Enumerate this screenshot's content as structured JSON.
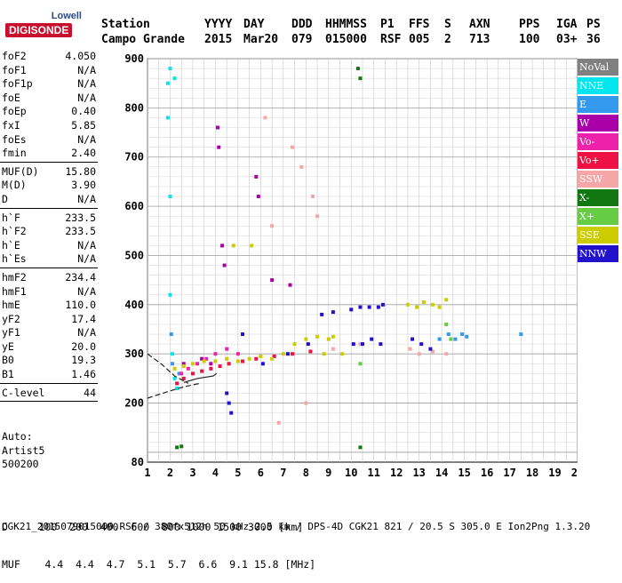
{
  "logo": {
    "top": "Lowell",
    "bottom": "DIGISONDE"
  },
  "header": {
    "labels": [
      "Station",
      "YYYY",
      "DAY",
      "DDD",
      "HHMMSS",
      "P1",
      "FFS",
      "S",
      "AXN",
      "PPS",
      "IGA",
      "PS"
    ],
    "values": [
      "Campo Grande",
      "2015",
      "Mar20",
      "079",
      "015000",
      "RSF",
      "005",
      "2",
      "713",
      "100",
      "03+",
      "36"
    ]
  },
  "params": [
    {
      "group": [
        {
          "name": "foF2",
          "value": "4.050"
        },
        {
          "name": "foF1",
          "value": "N/A"
        },
        {
          "name": "foF1p",
          "value": "N/A"
        },
        {
          "name": "foE",
          "value": "N/A"
        },
        {
          "name": "foEp",
          "value": "0.40"
        },
        {
          "name": "fxI",
          "value": "5.85"
        },
        {
          "name": "foEs",
          "value": "N/A"
        },
        {
          "name": "fmin",
          "value": "2.40"
        }
      ]
    },
    {
      "group": [
        {
          "name": "MUF(D)",
          "value": "15.80"
        },
        {
          "name": "M(D)",
          "value": "3.90"
        },
        {
          "name": "D",
          "value": "N/A"
        }
      ]
    },
    {
      "group": [
        {
          "name": "h`F",
          "value": "233.5"
        },
        {
          "name": "h`F2",
          "value": "233.5"
        },
        {
          "name": "h`E",
          "value": "N/A"
        },
        {
          "name": "h`Es",
          "value": "N/A"
        }
      ]
    },
    {
      "group": [
        {
          "name": "hmF2",
          "value": "234.4"
        },
        {
          "name": "hmF1",
          "value": "N/A"
        },
        {
          "name": "hmE",
          "value": "110.0"
        },
        {
          "name": "yF2",
          "value": "17.4"
        },
        {
          "name": "yF1",
          "value": "N/A"
        },
        {
          "name": "yE",
          "value": "20.0"
        },
        {
          "name": "B0",
          "value": "19.3"
        },
        {
          "name": "B1",
          "value": "1.46"
        }
      ]
    },
    {
      "group": [
        {
          "name": "C-level",
          "value": "44"
        }
      ]
    }
  ],
  "autoscaling": [
    "Auto:",
    "Artist5",
    "500200"
  ],
  "footer": {
    "d_row": "D     100  200  400  600  800 1000 1500 3000 [km]",
    "muf_row": "MUF    4.4  4.4  4.7  5.1  5.7  6.6  9.1 15.8 [MHz]",
    "file_line": "CGK21_2015079015000.RSF / 380fx512h 50 kHz 2.5 km / DPS-4D CGK21 821 / 20.5 S 305.0 E Ion2Png 1.3.20"
  },
  "legend": [
    {
      "label": "NoVal",
      "color": "#808080"
    },
    {
      "label": "NNE",
      "color": "#00e5ee"
    },
    {
      "label": "E",
      "color": "#3399ee"
    },
    {
      "label": "W",
      "color": "#aa00aa"
    },
    {
      "label": "Vo-",
      "color": "#ee22aa"
    },
    {
      "label": "Vo+",
      "color": "#ee1144"
    },
    {
      "label": "SSW",
      "color": "#f5a6a6"
    },
    {
      "label": "X-",
      "color": "#117711"
    },
    {
      "label": "X+",
      "color": "#66cc44"
    },
    {
      "label": "SSE",
      "color": "#cccc00"
    },
    {
      "label": "NNW",
      "color": "#2211cc"
    }
  ],
  "chart_data": {
    "type": "scatter",
    "x_ticks": [
      1,
      2,
      3,
      4,
      5,
      6,
      7,
      8,
      9,
      10,
      11,
      12,
      13,
      14,
      15,
      16,
      17,
      18,
      19,
      20
    ],
    "y_ticks": [
      200,
      300,
      400,
      500,
      600,
      700,
      800,
      900
    ],
    "xlim": [
      1,
      20
    ],
    "ylim": [
      80,
      900
    ],
    "grid": true,
    "legend_position": "right",
    "series": [
      {
        "color_key": "NNE",
        "points": [
          [
            1.9,
            850
          ],
          [
            1.9,
            780
          ],
          [
            2.0,
            620
          ],
          [
            2.0,
            420
          ],
          [
            2.1,
            300
          ],
          [
            2.2,
            250
          ],
          [
            2.3,
            230
          ],
          [
            2.0,
            880
          ],
          [
            2.2,
            860
          ]
        ]
      },
      {
        "color_key": "E",
        "points": [
          [
            2.05,
            340
          ],
          [
            2.1,
            280
          ],
          [
            2.4,
            260
          ],
          [
            13.9,
            330
          ],
          [
            14.3,
            340
          ],
          [
            14.6,
            330
          ],
          [
            14.9,
            340
          ],
          [
            15.1,
            335
          ],
          [
            17.5,
            340
          ]
        ]
      },
      {
        "color_key": "W",
        "points": [
          [
            4.1,
            760
          ],
          [
            4.15,
            720
          ],
          [
            4.3,
            520
          ],
          [
            4.4,
            480
          ],
          [
            5.8,
            660
          ],
          [
            5.9,
            620
          ],
          [
            6.5,
            450
          ],
          [
            7.3,
            440
          ],
          [
            2.6,
            280
          ],
          [
            3.4,
            290
          ],
          [
            3.8,
            280
          ]
        ]
      },
      {
        "color_key": "Vo-",
        "points": [
          [
            2.5,
            260
          ],
          [
            2.8,
            270
          ],
          [
            3.2,
            280
          ],
          [
            3.6,
            290
          ],
          [
            4.0,
            300
          ],
          [
            4.5,
            310
          ],
          [
            5.0,
            300
          ]
        ]
      },
      {
        "color_key": "Vo+",
        "points": [
          [
            2.3,
            240
          ],
          [
            2.6,
            250
          ],
          [
            3.0,
            260
          ],
          [
            3.4,
            265
          ],
          [
            3.8,
            270
          ],
          [
            4.2,
            275
          ],
          [
            4.6,
            280
          ],
          [
            5.2,
            285
          ],
          [
            5.8,
            290
          ],
          [
            6.6,
            295
          ],
          [
            7.4,
            300
          ],
          [
            8.2,
            305
          ]
        ]
      },
      {
        "color_key": "SSW",
        "points": [
          [
            6.2,
            780
          ],
          [
            6.5,
            560
          ],
          [
            7.4,
            720
          ],
          [
            7.8,
            680
          ],
          [
            8.3,
            620
          ],
          [
            8.5,
            580
          ],
          [
            8.0,
            200
          ],
          [
            6.8,
            160
          ],
          [
            9.2,
            310
          ],
          [
            10.4,
            320
          ],
          [
            12.6,
            310
          ],
          [
            13.0,
            300
          ],
          [
            13.6,
            305
          ],
          [
            14.2,
            300
          ]
        ]
      },
      {
        "color_key": "X-",
        "points": [
          [
            2.3,
            110
          ],
          [
            2.5,
            112
          ],
          [
            10.3,
            880
          ],
          [
            10.4,
            860
          ],
          [
            10.4,
            110
          ]
        ]
      },
      {
        "color_key": "X+",
        "points": [
          [
            10.4,
            280
          ],
          [
            14.2,
            360
          ],
          [
            14.4,
            330
          ]
        ]
      },
      {
        "color_key": "SSE",
        "points": [
          [
            2.2,
            270
          ],
          [
            2.6,
            275
          ],
          [
            3.0,
            280
          ],
          [
            3.5,
            285
          ],
          [
            4.0,
            285
          ],
          [
            4.5,
            290
          ],
          [
            5.0,
            285
          ],
          [
            5.5,
            290
          ],
          [
            6.0,
            295
          ],
          [
            6.5,
            290
          ],
          [
            7.0,
            300
          ],
          [
            7.5,
            320
          ],
          [
            8.0,
            330
          ],
          [
            8.5,
            335
          ],
          [
            9.0,
            330
          ],
          [
            9.2,
            335
          ],
          [
            12.5,
            400
          ],
          [
            12.9,
            395
          ],
          [
            13.2,
            405
          ],
          [
            13.6,
            400
          ],
          [
            13.9,
            395
          ],
          [
            14.2,
            410
          ],
          [
            8.8,
            300
          ],
          [
            9.6,
            300
          ],
          [
            4.8,
            520
          ],
          [
            5.6,
            520
          ]
        ]
      },
      {
        "color_key": "NNW",
        "points": [
          [
            4.5,
            220
          ],
          [
            4.6,
            200
          ],
          [
            4.7,
            180
          ],
          [
            5.2,
            340
          ],
          [
            6.1,
            280
          ],
          [
            7.2,
            300
          ],
          [
            8.1,
            320
          ],
          [
            8.7,
            380
          ],
          [
            9.2,
            385
          ],
          [
            10.0,
            390
          ],
          [
            10.4,
            395
          ],
          [
            10.8,
            395
          ],
          [
            11.2,
            395
          ],
          [
            11.4,
            400
          ],
          [
            10.1,
            320
          ],
          [
            10.5,
            320
          ],
          [
            10.9,
            330
          ],
          [
            11.3,
            320
          ],
          [
            12.7,
            330
          ],
          [
            13.1,
            320
          ],
          [
            13.5,
            310
          ]
        ]
      }
    ],
    "curves": [
      {
        "style": "dashed",
        "points": [
          [
            1.0,
            300
          ],
          [
            1.6,
            280
          ],
          [
            2.2,
            255
          ],
          [
            2.8,
            240
          ]
        ]
      },
      {
        "style": "dashed",
        "points": [
          [
            1.0,
            210
          ],
          [
            1.8,
            222
          ],
          [
            2.6,
            233
          ],
          [
            3.3,
            240
          ]
        ]
      },
      {
        "style": "solid",
        "points": [
          [
            2.6,
            242
          ],
          [
            3.2,
            250
          ],
          [
            3.9,
            255
          ],
          [
            4.05,
            260
          ]
        ]
      }
    ]
  }
}
